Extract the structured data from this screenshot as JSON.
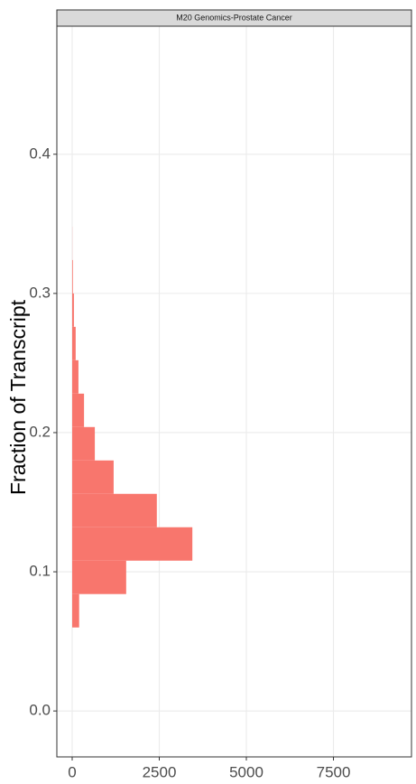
{
  "chart_data": {
    "type": "histogram",
    "orientation": "horizontal",
    "strip_title": "M20 Genomics-Prostate Cancer",
    "ylabel": "Fraction of Transcript",
    "bins": [
      0.06,
      0.084,
      0.108,
      0.132,
      0.156,
      0.18,
      0.204,
      0.228,
      0.252,
      0.276,
      0.3,
      0.324,
      0.348
    ],
    "values": [
      200,
      1550,
      3450,
      2430,
      1190,
      650,
      340,
      180,
      100,
      50,
      20,
      3
    ],
    "color": "#f8766d",
    "xlim": [
      -440,
      9740
    ],
    "xticks": [
      0,
      2500,
      5000,
      7500
    ],
    "ylim": [
      -0.033,
      0.492
    ],
    "yticks": [
      0.0,
      0.1,
      0.2,
      0.3,
      0.4
    ],
    "grid": true
  }
}
